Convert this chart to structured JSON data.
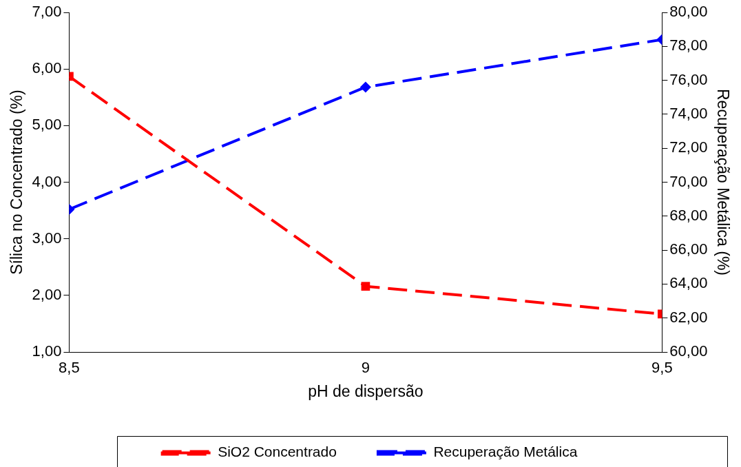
{
  "chart_data": {
    "type": "line",
    "xlabel": "pH de dispersão",
    "ylabel": "Sílica no Concentrado (%)",
    "y2label": "Recuperação Metálica (%)",
    "x": [
      8.5,
      9,
      9.5
    ],
    "xlim": [
      8.5,
      9.5
    ],
    "xticks": [
      {
        "value": 8.5,
        "label": "8,5"
      },
      9,
      {
        "value": 9.5,
        "label": "9,5"
      }
    ],
    "ylim": [
      1,
      7
    ],
    "yticks": [
      {
        "value": 1,
        "label": "1,00"
      },
      {
        "value": 2,
        "label": "2,00"
      },
      {
        "value": 3,
        "label": "3,00"
      },
      {
        "value": 4,
        "label": "4,00"
      },
      {
        "value": 5,
        "label": "5,00"
      },
      {
        "value": 6,
        "label": "6,00"
      },
      {
        "value": 7,
        "label": "7,00"
      }
    ],
    "y2lim": [
      60,
      80
    ],
    "y2ticks": [
      {
        "value": 60,
        "label": "60,00"
      },
      {
        "value": 62,
        "label": "62,00"
      },
      {
        "value": 64,
        "label": "64,00"
      },
      {
        "value": 66,
        "label": "66,00"
      },
      {
        "value": 68,
        "label": "68,00"
      },
      {
        "value": 70,
        "label": "70,00"
      },
      {
        "value": 72,
        "label": "72,00"
      },
      {
        "value": 74,
        "label": "74,00"
      },
      {
        "value": 76,
        "label": "76,00"
      },
      {
        "value": 78,
        "label": "78,00"
      },
      {
        "value": 80,
        "label": "80,00"
      }
    ],
    "series": [
      {
        "name": "SiO2 Concentrado",
        "color": "#ff0000",
        "marker": "square",
        "values": [
          5.87,
          2.16,
          1.67
        ]
      },
      {
        "name": "Recuperação Metálica",
        "color": "#0000ff",
        "marker": "diamond",
        "axis": "y2",
        "values": [
          68.4,
          75.6,
          78.4
        ]
      }
    ],
    "line_style": "dashed",
    "grid": false,
    "legend": "bottom"
  }
}
